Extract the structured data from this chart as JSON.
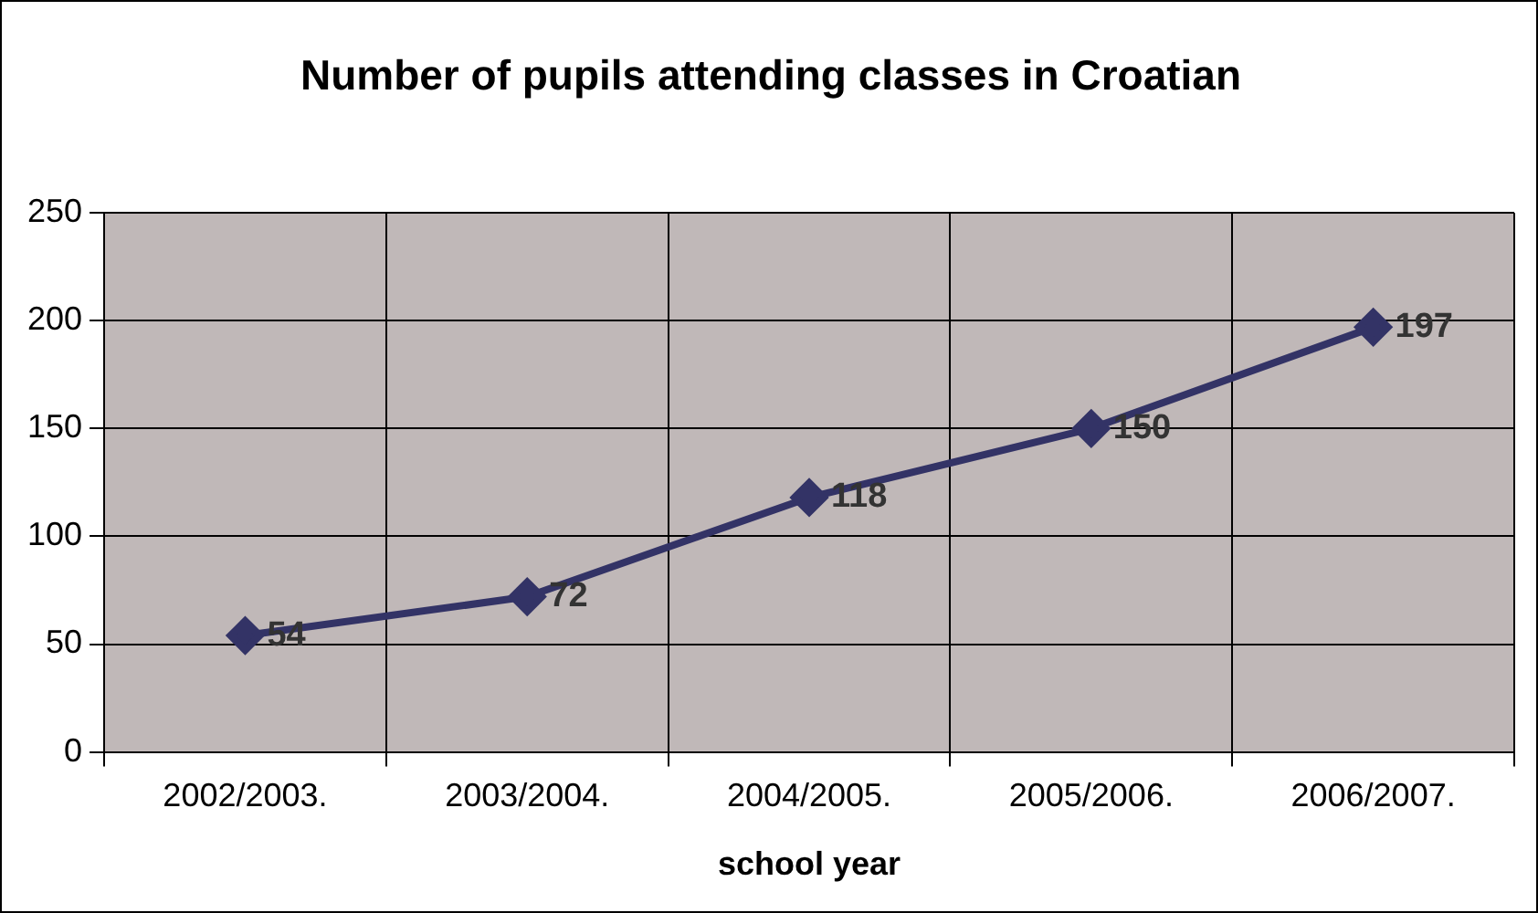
{
  "chart_data": {
    "type": "line",
    "title": "Number of pupils attending classes in Croatian",
    "xlabel": "school year",
    "categories": [
      "2002/2003.",
      "2003/2004.",
      "2004/2005.",
      "2005/2006.",
      "2006/2007."
    ],
    "series": [
      {
        "color": "#333366",
        "values": [
          54,
          72,
          118,
          150,
          197
        ]
      }
    ],
    "ylim": [
      0,
      250
    ],
    "yticks": [
      0,
      50,
      100,
      150,
      200,
      250
    ],
    "grid": true,
    "legend": false,
    "marker": "diamond",
    "line_style": "solid",
    "data_labels": true
  }
}
